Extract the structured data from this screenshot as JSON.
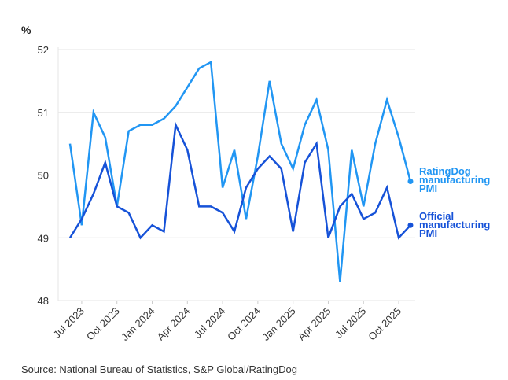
{
  "chart_data": {
    "type": "line",
    "ylabel": "%",
    "ylim": [
      48,
      52
    ],
    "yticks": [
      48,
      49,
      50,
      51,
      52
    ],
    "reference_line": 50,
    "grid": "horizontal",
    "x": [
      "Jun 2023",
      "Jul 2023",
      "Aug 2023",
      "Sep 2023",
      "Oct 2023",
      "Nov 2023",
      "Dec 2023",
      "Jan 2024",
      "Feb 2024",
      "Mar 2024",
      "Apr 2024",
      "May 2024",
      "Jun 2024",
      "Jul 2024",
      "Aug 2024",
      "Sep 2024",
      "Oct 2024",
      "Nov 2024",
      "Dec 2024",
      "Jan 2025",
      "Feb 2025",
      "Mar 2025",
      "Apr 2025",
      "May 2025",
      "Jun 2025",
      "Jul 2025",
      "Aug 2025",
      "Sep 2025",
      "Oct 2025",
      "Nov 2025"
    ],
    "xticklabels": [
      "Jul 2023",
      "Oct 2023",
      "Jan 2024",
      "Apr 2024",
      "Jul 2024",
      "Oct 2024",
      "Jan 2025",
      "Apr 2025",
      "Jul 2025",
      "Oct 2025"
    ],
    "series": [
      {
        "name": "RatingDog manufacturing PMI",
        "label_lines": [
          "RatingDog",
          "manufacturing",
          "PMI"
        ],
        "color": "#2196f3",
        "values": [
          50.5,
          49.2,
          51.0,
          50.6,
          49.5,
          50.7,
          50.8,
          50.8,
          50.9,
          51.1,
          51.4,
          51.7,
          51.8,
          49.8,
          50.4,
          49.3,
          50.3,
          51.5,
          50.5,
          50.1,
          50.8,
          51.2,
          50.4,
          48.3,
          50.4,
          49.5,
          50.5,
          51.2,
          50.6,
          49.9
        ]
      },
      {
        "name": "Official manufacturing PMI",
        "label_lines": [
          "Official",
          "manufacturing",
          "PMI"
        ],
        "color": "#1652d8",
        "values": [
          49.0,
          49.3,
          49.7,
          50.2,
          49.5,
          49.4,
          49.0,
          49.2,
          49.1,
          50.8,
          50.4,
          49.5,
          49.5,
          49.4,
          49.1,
          49.8,
          50.1,
          50.3,
          50.1,
          49.1,
          50.2,
          50.5,
          49.0,
          49.5,
          49.7,
          49.3,
          49.4,
          49.8,
          49.0,
          49.2
        ]
      }
    ]
  },
  "source": "Source: National Bureau of Statistics, S&P Global/RatingDog"
}
